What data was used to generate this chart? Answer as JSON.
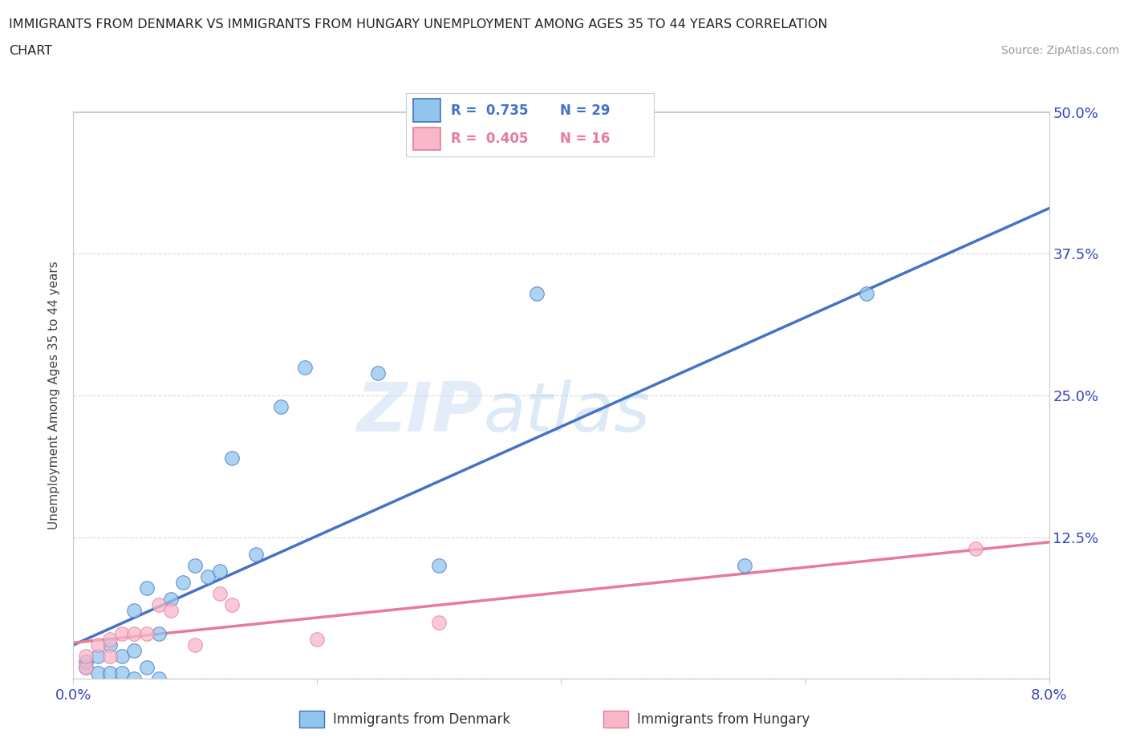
{
  "title_line1": "IMMIGRANTS FROM DENMARK VS IMMIGRANTS FROM HUNGARY UNEMPLOYMENT AMONG AGES 35 TO 44 YEARS CORRELATION",
  "title_line2": "CHART",
  "source_text": "Source: ZipAtlas.com",
  "ylabel": "Unemployment Among Ages 35 to 44 years",
  "xlim": [
    0.0,
    0.08
  ],
  "ylim": [
    0.0,
    0.5
  ],
  "xticks": [
    0.0,
    0.02,
    0.04,
    0.06,
    0.08
  ],
  "xtick_labels": [
    "0.0%",
    "",
    "",
    "",
    "8.0%"
  ],
  "yticks": [
    0.0,
    0.125,
    0.25,
    0.375,
    0.5
  ],
  "ytick_labels_right": [
    "",
    "12.5%",
    "25.0%",
    "37.5%",
    "50.0%"
  ],
  "denmark_color": "#92C5EE",
  "hungary_color": "#F9B8CA",
  "denmark_line_color": "#4472C4",
  "hungary_line_color": "#E87B9A",
  "denmark_R": 0.735,
  "denmark_N": 29,
  "hungary_R": 0.405,
  "hungary_N": 16,
  "legend_label_denmark": "Immigrants from Denmark",
  "legend_label_hungary": "Immigrants from Hungary",
  "watermark_zip": "ZIP",
  "watermark_atlas": "atlas",
  "denmark_x": [
    0.001,
    0.001,
    0.002,
    0.002,
    0.003,
    0.003,
    0.004,
    0.004,
    0.005,
    0.005,
    0.005,
    0.006,
    0.006,
    0.007,
    0.007,
    0.008,
    0.009,
    0.01,
    0.011,
    0.012,
    0.013,
    0.015,
    0.017,
    0.019,
    0.025,
    0.03,
    0.038,
    0.055,
    0.065
  ],
  "denmark_y": [
    0.01,
    0.015,
    0.005,
    0.02,
    0.03,
    0.005,
    0.02,
    0.005,
    0.06,
    0.025,
    0.0,
    0.08,
    0.01,
    0.04,
    0.0,
    0.07,
    0.085,
    0.1,
    0.09,
    0.095,
    0.195,
    0.11,
    0.24,
    0.275,
    0.27,
    0.1,
    0.34,
    0.1,
    0.34
  ],
  "hungary_x": [
    0.001,
    0.001,
    0.002,
    0.003,
    0.003,
    0.004,
    0.005,
    0.006,
    0.007,
    0.008,
    0.01,
    0.012,
    0.013,
    0.02,
    0.03,
    0.074
  ],
  "hungary_y": [
    0.01,
    0.02,
    0.03,
    0.02,
    0.035,
    0.04,
    0.04,
    0.04,
    0.065,
    0.06,
    0.03,
    0.075,
    0.065,
    0.035,
    0.05,
    0.115
  ],
  "background_color": "#FFFFFF",
  "grid_color": "#D0D0D0",
  "tick_label_color": "#3344BB",
  "spine_color": "#CCCCCC"
}
